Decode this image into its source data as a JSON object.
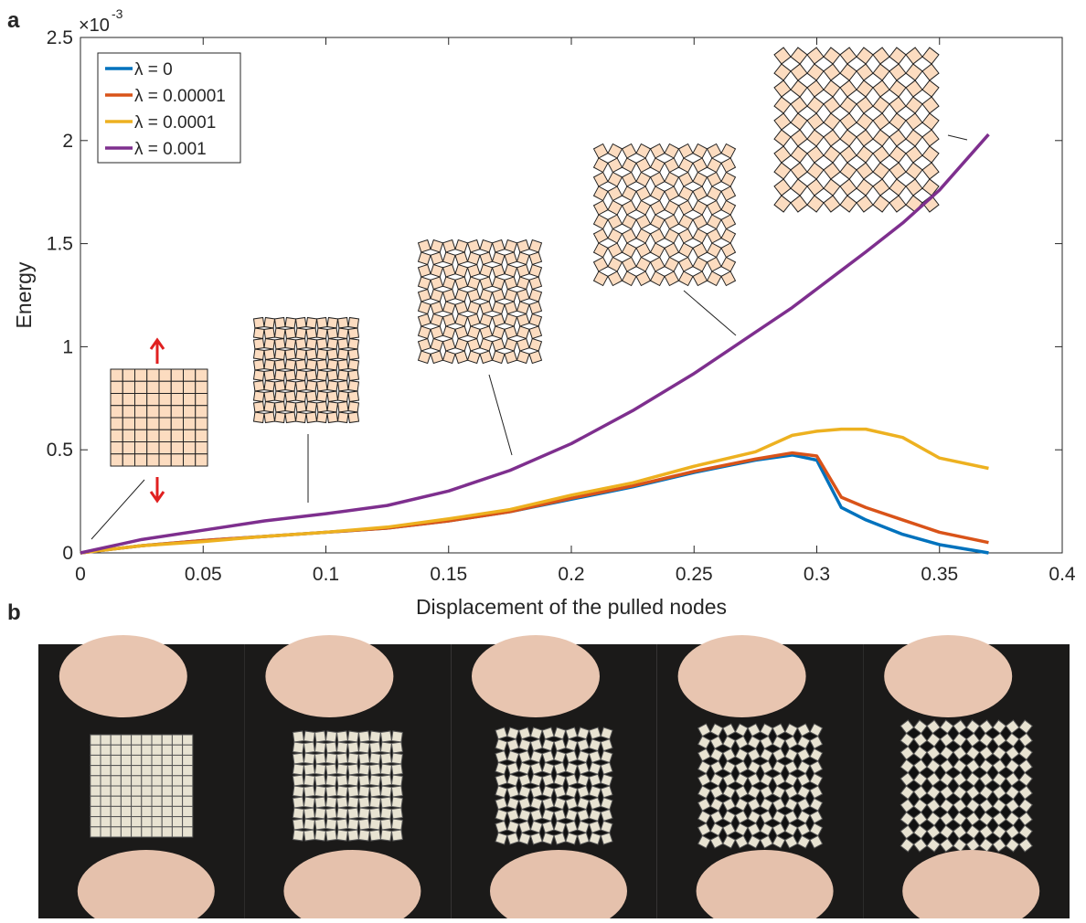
{
  "chart_data": {
    "type": "line",
    "panel_labels": [
      "a",
      "b"
    ],
    "xlabel": "Displacement of the pulled nodes",
    "ylabel": "Energy",
    "y_multiplier": {
      "base": "×10",
      "exponent": "-3"
    },
    "xlim": [
      0,
      0.4
    ],
    "xticks": [
      0,
      0.05,
      0.1,
      0.15,
      0.2,
      0.25,
      0.3,
      0.35,
      0.4
    ],
    "ylim": [
      0,
      2.5
    ],
    "yticks": [
      0,
      0.5,
      1,
      1.5,
      2,
      2.5
    ],
    "legend": "upper left",
    "x": [
      0,
      0.025,
      0.05,
      0.075,
      0.1,
      0.125,
      0.15,
      0.175,
      0.2,
      0.225,
      0.25,
      0.275,
      0.29,
      0.3,
      0.31,
      0.32,
      0.335,
      0.35,
      0.37
    ],
    "series": [
      {
        "name": "λ = 0",
        "color": "#0072bd",
        "values": [
          0,
          0.035,
          0.06,
          0.08,
          0.1,
          0.12,
          0.155,
          0.2,
          0.26,
          0.32,
          0.39,
          0.45,
          0.475,
          0.45,
          0.22,
          0.16,
          0.09,
          0.04,
          0
        ]
      },
      {
        "name": "λ = 0.00001",
        "color": "#d95319",
        "values": [
          0,
          0.035,
          0.06,
          0.08,
          0.1,
          0.12,
          0.155,
          0.2,
          0.265,
          0.325,
          0.395,
          0.455,
          0.485,
          0.47,
          0.27,
          0.22,
          0.16,
          0.1,
          0.05
        ]
      },
      {
        "name": "λ = 0.0001",
        "color": "#edb120",
        "values": [
          0,
          0.035,
          0.055,
          0.08,
          0.1,
          0.125,
          0.165,
          0.21,
          0.28,
          0.34,
          0.42,
          0.49,
          0.57,
          0.59,
          0.6,
          0.6,
          0.56,
          0.46,
          0.41
        ]
      },
      {
        "name": "λ = 0.001",
        "color": "#7e2f8e",
        "values": [
          0,
          0.065,
          0.11,
          0.155,
          0.19,
          0.23,
          0.3,
          0.4,
          0.53,
          0.69,
          0.87,
          1.07,
          1.19,
          1.28,
          1.37,
          1.46,
          1.6,
          1.76,
          2.03
        ]
      }
    ]
  }
}
